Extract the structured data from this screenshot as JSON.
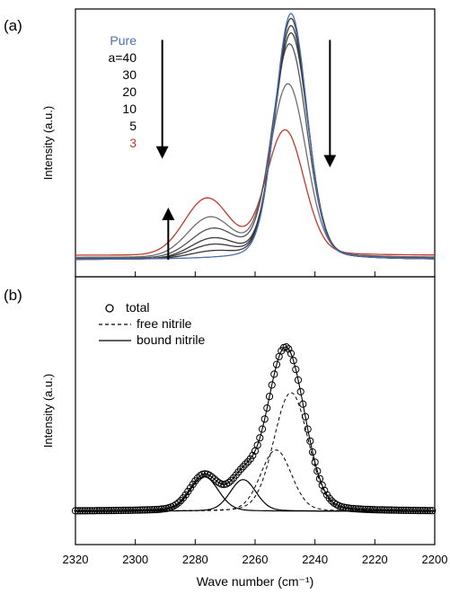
{
  "figure": {
    "panel_labels": [
      "(a)",
      "(b)"
    ],
    "xlabel": "Wave number (cm⁻¹)",
    "ylabel": "Intensity (a.u.)"
  },
  "chart_data": [
    {
      "panel": "(a)",
      "type": "line",
      "xlabel": "Wave number (cm⁻¹)",
      "ylabel": "Intensity (a.u.)",
      "xlim": [
        2320,
        2200
      ],
      "x_reversed": true,
      "ylim": [
        0,
        1.08
      ],
      "y_ticks_shown": false,
      "grid": false,
      "legend_position": "top-left",
      "series": [
        {
          "name": "Pure",
          "color": "#4a6fb5",
          "main_center": 2248,
          "main_height": 1.02,
          "main_width": 5.2,
          "shoulder_center": 2274,
          "shoulder_height": 0.0,
          "baseline": 0.0
        },
        {
          "name": "a=40",
          "color": "#3a3a3a",
          "main_center": 2248,
          "main_height": 1.0,
          "main_width": 5.3,
          "shoulder_center": 2274,
          "shoulder_height": 0.03,
          "baseline": 0.0
        },
        {
          "name": "30",
          "color": "#3a3a3a",
          "main_center": 2248,
          "main_height": 0.97,
          "main_width": 5.4,
          "shoulder_center": 2274,
          "shoulder_height": 0.06,
          "baseline": 0.0
        },
        {
          "name": "20",
          "color": "#3a3a3a",
          "main_center": 2248,
          "main_height": 0.94,
          "main_width": 5.5,
          "shoulder_center": 2274,
          "shoulder_height": 0.09,
          "baseline": 0.0
        },
        {
          "name": "10",
          "color": "#555555",
          "main_center": 2248.5,
          "main_height": 0.89,
          "main_width": 5.7,
          "shoulder_center": 2274,
          "shoulder_height": 0.13,
          "baseline": 0.005
        },
        {
          "name": "5",
          "color": "#6e6e6e",
          "main_center": 2249,
          "main_height": 0.72,
          "main_width": 6.0,
          "shoulder_center": 2275,
          "shoulder_height": 0.18,
          "baseline": 0.01
        },
        {
          "name": "3",
          "color": "#c0392b",
          "main_center": 2250,
          "main_height": 0.52,
          "main_width": 6.3,
          "shoulder_center": 2276,
          "shoulder_height": 0.26,
          "baseline": 0.02
        }
      ],
      "annotations": [
        {
          "type": "arrow",
          "direction": "down",
          "x": 2291,
          "from": 1.02,
          "to": 0.48
        },
        {
          "type": "arrow",
          "direction": "up",
          "x": 2289,
          "from": 0.0,
          "to": 0.23
        },
        {
          "type": "arrow",
          "direction": "down",
          "x": 2235,
          "from": 1.02,
          "to": 0.44
        }
      ]
    },
    {
      "panel": "(b)",
      "type": "line",
      "xlabel": "Wave number (cm⁻¹)",
      "ylabel": "Intensity (a.u.)",
      "xlim": [
        2320,
        2200
      ],
      "x_reversed": true,
      "xticks": [
        2320,
        2300,
        2280,
        2260,
        2240,
        2220,
        2200
      ],
      "ylim": [
        -0.02,
        1.04
      ],
      "y_ticks_shown": false,
      "grid": false,
      "legend_position": "top-left",
      "series": [
        {
          "name": "total",
          "style": "circles",
          "components": [
            "c1",
            "c2",
            "c3",
            "c4"
          ]
        },
        {
          "name": "free nitrile",
          "style": "dashed",
          "components": [
            "c3",
            "c4"
          ]
        },
        {
          "name": "bound nitrile",
          "style": "solid",
          "components": [
            "c1",
            "c2"
          ]
        }
      ],
      "components": [
        {
          "id": "c1",
          "kind": "bound nitrile",
          "center": 2277,
          "height": 0.175,
          "width": 4.6
        },
        {
          "id": "c2",
          "kind": "bound nitrile",
          "center": 2264,
          "height": 0.16,
          "width": 4.2
        },
        {
          "id": "c3",
          "kind": "free nitrile",
          "center": 2253,
          "height": 0.31,
          "width": 5.0
        },
        {
          "id": "c4",
          "kind": "free nitrile",
          "center": 2248,
          "height": 0.6,
          "width": 5.6
        }
      ],
      "total_fit_color": "#000000"
    }
  ]
}
